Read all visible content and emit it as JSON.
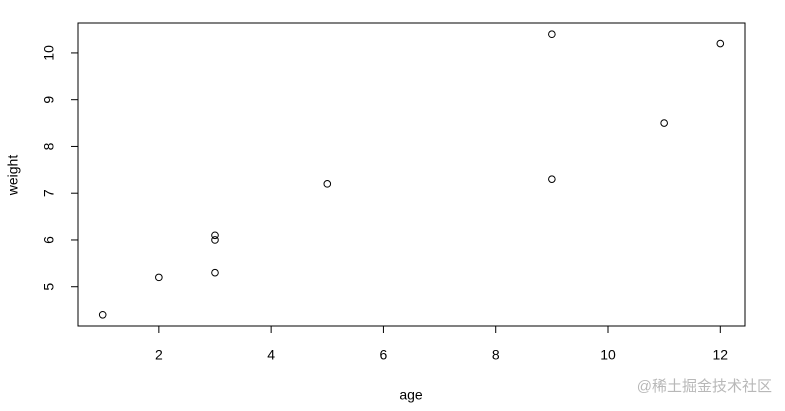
{
  "chart_data": {
    "type": "scatter",
    "x_label": "age",
    "y_label": "weight",
    "x": [
      1,
      3,
      5,
      2,
      11,
      9,
      3,
      9,
      12,
      3
    ],
    "values": [
      4.4,
      5.3,
      7.2,
      5.2,
      8.5,
      7.3,
      6.0,
      10.4,
      10.2,
      6.1
    ],
    "color": "#000000",
    "xlim": [
      0.56,
      12.44
    ],
    "ylim": [
      4.16,
      10.64
    ],
    "xticks": [
      2,
      4,
      6,
      8,
      10,
      12
    ],
    "yticks": [
      5,
      6,
      7,
      8,
      9,
      10
    ],
    "grid": false
  },
  "watermark": "@稀土掘金技术社区"
}
